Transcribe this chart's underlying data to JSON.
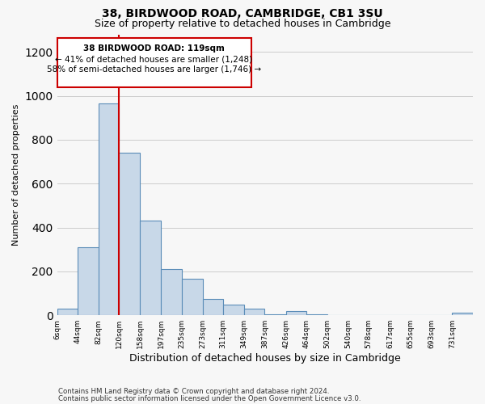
{
  "title1": "38, BIRDWOOD ROAD, CAMBRIDGE, CB1 3SU",
  "title2": "Size of property relative to detached houses in Cambridge",
  "xlabel": "Distribution of detached houses by size in Cambridge",
  "ylabel": "Number of detached properties",
  "bar_edges": [
    6,
    44,
    82,
    120,
    158,
    197,
    235,
    273,
    311,
    349,
    387,
    426,
    464,
    502,
    540,
    578,
    617,
    655,
    693,
    731,
    769
  ],
  "bar_heights": [
    30,
    310,
    965,
    740,
    430,
    210,
    165,
    75,
    50,
    30,
    5,
    20,
    3,
    2,
    2,
    2,
    1,
    1,
    1,
    10
  ],
  "bar_color": "#c8d8e8",
  "bar_edge_color": "#5b8db8",
  "property_line_x": 119,
  "annotation_text_line1": "38 BIRDWOOD ROAD: 119sqm",
  "annotation_text_line2": "← 41% of detached houses are smaller (1,248)",
  "annotation_text_line3": "58% of semi-detached houses are larger (1,746) →",
  "annotation_box_edge_color": "#cc0000",
  "ylim": [
    0,
    1280
  ],
  "yticks": [
    0,
    200,
    400,
    600,
    800,
    1000,
    1200
  ],
  "footer_line1": "Contains HM Land Registry data © Crown copyright and database right 2024.",
  "footer_line2": "Contains public sector information licensed under the Open Government Licence v3.0.",
  "bg_color": "#f7f7f7"
}
